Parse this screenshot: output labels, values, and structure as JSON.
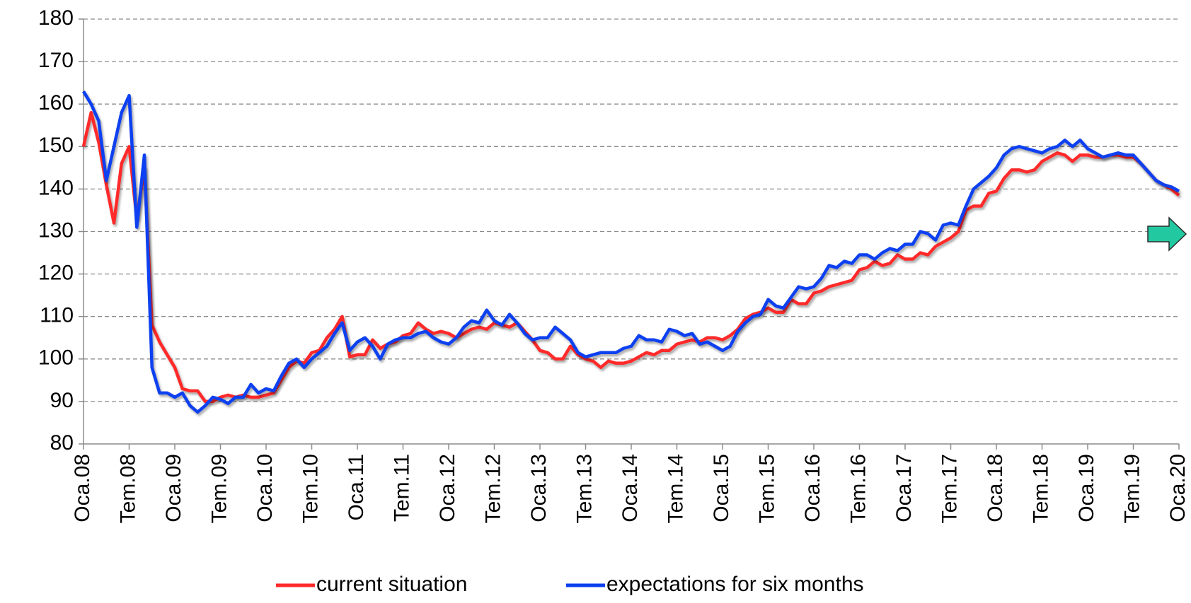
{
  "chart_data": {
    "type": "line",
    "categories": [
      "Oca.08",
      null,
      null,
      null,
      null,
      null,
      "Tem.08",
      null,
      null,
      null,
      null,
      null,
      "Oca.09",
      null,
      null,
      null,
      null,
      null,
      "Tem.09",
      null,
      null,
      null,
      null,
      null,
      "Oca.10",
      null,
      null,
      null,
      null,
      null,
      "Tem.10",
      null,
      null,
      null,
      null,
      null,
      "Oca.11",
      null,
      null,
      null,
      null,
      null,
      "Tem.11",
      null,
      null,
      null,
      null,
      null,
      "Oca.12",
      null,
      null,
      null,
      null,
      null,
      "Tem.12",
      null,
      null,
      null,
      null,
      null,
      "Oca.13",
      null,
      null,
      null,
      null,
      null,
      "Tem.13",
      null,
      null,
      null,
      null,
      null,
      "Oca.14",
      null,
      null,
      null,
      null,
      null,
      "Tem.14",
      null,
      null,
      null,
      null,
      null,
      "Oca.15",
      null,
      null,
      null,
      null,
      null,
      "Tem.15",
      null,
      null,
      null,
      null,
      null,
      "Oca.16",
      null,
      null,
      null,
      null,
      null,
      "Tem.16",
      null,
      null,
      null,
      null,
      null,
      "Oca.17",
      null,
      null,
      null,
      null,
      null,
      "Tem.17",
      null,
      null,
      null,
      null,
      null,
      "Oca.18",
      null,
      null,
      null,
      null,
      null,
      "Tem.18",
      null,
      null,
      null,
      null,
      null,
      "Oca.19",
      null,
      null,
      null,
      null,
      null,
      "Tem.19",
      null,
      null,
      null,
      null,
      null,
      "Oca.20"
    ],
    "series": [
      {
        "name": "current situation",
        "color": "#ff2a2a",
        "values": [
          150,
          158,
          151,
          141,
          132,
          146,
          150,
          133,
          145,
          108,
          104,
          101,
          98,
          93,
          92.5,
          92.5,
          90,
          90,
          91,
          91.5,
          91,
          91.5,
          91,
          91,
          91.5,
          92,
          95,
          98,
          99.5,
          99,
          101.5,
          102,
          105,
          107,
          110,
          100.5,
          101,
          101,
          104.5,
          102.5,
          103.5,
          104,
          105.5,
          106,
          108.5,
          107,
          106,
          106.5,
          106,
          105,
          106,
          107,
          107.5,
          107,
          108.5,
          108,
          107.5,
          108.5,
          106.5,
          104.5,
          102,
          101.5,
          100,
          100,
          103,
          101,
          100,
          99.5,
          98,
          99.5,
          99,
          99,
          99.5,
          100.5,
          101.5,
          101,
          102,
          102,
          103.5,
          104,
          104.5,
          104,
          105,
          105,
          104.5,
          105.5,
          107,
          109.5,
          110.5,
          111,
          112,
          111,
          111,
          114,
          113,
          113,
          115.5,
          116,
          117,
          117.5,
          118,
          118.5,
          121,
          121.5,
          123,
          122,
          122.5,
          124.5,
          123.5,
          123.5,
          125,
          124.5,
          126.5,
          127.5,
          128.5,
          130,
          135,
          136,
          136,
          139,
          139.5,
          142.5,
          144.5,
          144.5,
          144,
          144.5,
          146.5,
          147.5,
          148.5,
          148,
          146.5,
          148,
          148,
          147.5,
          147.5,
          148,
          148,
          147.5,
          147.5,
          146,
          144,
          142,
          141,
          140,
          138.5
        ]
      },
      {
        "name": "expectations for six months",
        "color": "#0a3ff0",
        "values": [
          163,
          160,
          156,
          142,
          150,
          158,
          162,
          131,
          148,
          98,
          92,
          92,
          91,
          92,
          89,
          87.5,
          89,
          91,
          90.5,
          89.5,
          91,
          91,
          94,
          92,
          93,
          92.5,
          96,
          99,
          100,
          98,
          100,
          101.5,
          103,
          106,
          108.5,
          102,
          104,
          105,
          103,
          100,
          103.5,
          104.5,
          105,
          105,
          106,
          106.5,
          105,
          104,
          103.5,
          105,
          107.5,
          109,
          108.5,
          111.5,
          109,
          108,
          110.5,
          108.5,
          106,
          104.5,
          105,
          105,
          107.5,
          106,
          104.5,
          101.5,
          100.5,
          101,
          101.5,
          101.5,
          101.5,
          102.5,
          103,
          105.5,
          104.5,
          104.5,
          104,
          107,
          106.5,
          105.5,
          106,
          103.5,
          104,
          103,
          102,
          103,
          106.5,
          108.5,
          110,
          110.5,
          114,
          112.5,
          112,
          114.5,
          117,
          116.5,
          117,
          119,
          122,
          121.5,
          123,
          122.5,
          124.5,
          124.5,
          123.5,
          125,
          126,
          125.5,
          127,
          127,
          130,
          129.5,
          128,
          131.5,
          132,
          131.5,
          136,
          140,
          141.5,
          143,
          145,
          148,
          149.5,
          150,
          149.5,
          149,
          148.5,
          149.5,
          150,
          151.5,
          150,
          151.5,
          149.5,
          148.5,
          147.5,
          148,
          148.5,
          148,
          148,
          146,
          144,
          142,
          141,
          140.5,
          139.5
        ]
      }
    ],
    "ylim": [
      80,
      180
    ],
    "yticks": [
      80,
      90,
      100,
      110,
      120,
      130,
      140,
      150,
      160,
      170,
      180
    ],
    "grid": true
  }
}
